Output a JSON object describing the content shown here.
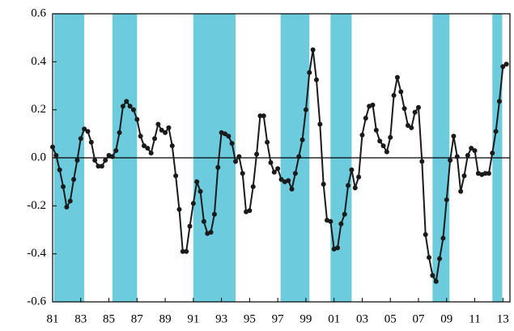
{
  "chart_data": {
    "type": "line",
    "x": [
      1981,
      1981.25,
      1981.5,
      1981.75,
      1982,
      1982.25,
      1982.5,
      1982.75,
      1983,
      1983.25,
      1983.5,
      1983.75,
      1984,
      1984.25,
      1984.5,
      1984.75,
      1985,
      1985.25,
      1985.5,
      1985.75,
      1986,
      1986.25,
      1986.5,
      1986.75,
      1987,
      1987.25,
      1987.5,
      1987.75,
      1988,
      1988.25,
      1988.5,
      1988.75,
      1989,
      1989.25,
      1989.5,
      1989.75,
      1990,
      1990.25,
      1990.5,
      1990.75,
      1991,
      1991.25,
      1991.5,
      1991.75,
      1992,
      1992.25,
      1992.5,
      1992.75,
      1993,
      1993.25,
      1993.5,
      1993.75,
      1994,
      1994.25,
      1994.5,
      1994.75,
      1995,
      1995.25,
      1995.5,
      1995.75,
      1996,
      1996.25,
      1996.5,
      1996.75,
      1997,
      1997.25,
      1997.5,
      1997.75,
      1998,
      1998.25,
      1998.5,
      1998.75,
      1999,
      1999.25,
      1999.5,
      1999.75,
      2000,
      2000.25,
      2000.5,
      2000.75,
      2001,
      2001.25,
      2001.5,
      2001.75,
      2002,
      2002.25,
      2002.5,
      2002.75,
      2003,
      2003.25,
      2003.5,
      2003.75,
      2004,
      2004.25,
      2004.5,
      2004.75,
      2005,
      2005.25,
      2005.5,
      2005.75,
      2006,
      2006.25,
      2006.5,
      2006.75,
      2007,
      2007.25,
      2007.5,
      2007.75,
      2008,
      2008.25,
      2008.5,
      2008.75,
      2009,
      2009.25,
      2009.5,
      2009.75,
      2010,
      2010.25,
      2010.5,
      2010.75,
      2011,
      2011.25,
      2011.5,
      2011.75,
      2012,
      2012.25,
      2012.5,
      2012.75,
      2013,
      2013.25
    ],
    "series": [
      {
        "color": "#1a1a1a",
        "values": [
          0.045,
          0.01,
          -0.05,
          -0.12,
          -0.205,
          -0.18,
          -0.09,
          -0.01,
          0.08,
          0.12,
          0.11,
          0.065,
          -0.01,
          -0.035,
          -0.035,
          -0.01,
          0.01,
          0.005,
          0.03,
          0.105,
          0.215,
          0.235,
          0.215,
          0.2,
          0.16,
          0.09,
          0.05,
          0.04,
          0.02,
          0.08,
          0.14,
          0.115,
          0.105,
          0.125,
          0.05,
          -0.075,
          -0.215,
          -0.39,
          -0.39,
          -0.285,
          -0.19,
          -0.1,
          -0.14,
          -0.265,
          -0.315,
          -0.31,
          -0.235,
          -0.04,
          0.105,
          0.1,
          0.09,
          0.06,
          -0.015,
          0.005,
          -0.065,
          -0.225,
          -0.22,
          -0.12,
          0.015,
          0.175,
          0.175,
          0.065,
          -0.02,
          -0.06,
          -0.045,
          -0.09,
          -0.1,
          -0.095,
          -0.13,
          -0.065,
          0.005,
          0.075,
          0.2,
          0.355,
          0.45,
          0.325,
          0.14,
          -0.11,
          -0.26,
          -0.265,
          -0.38,
          -0.375,
          -0.275,
          -0.235,
          -0.115,
          -0.05,
          -0.125,
          -0.08,
          0.095,
          0.165,
          0.215,
          0.22,
          0.115,
          0.07,
          0.05,
          0.025,
          0.085,
          0.26,
          0.335,
          0.275,
          0.205,
          0.135,
          0.125,
          0.19,
          0.21,
          -0.015,
          -0.32,
          -0.415,
          -0.49,
          -0.515,
          -0.42,
          -0.335,
          -0.175,
          -0.01,
          0.09,
          0.005,
          -0.14,
          -0.075,
          0.01,
          0.04,
          0.03,
          -0.065,
          -0.07,
          -0.065,
          -0.065,
          0.02,
          0.11,
          0.235,
          0.38,
          0.39
        ]
      }
    ],
    "shaded_periods": [
      [
        1981.1,
        1983.25
      ],
      [
        1985.25,
        1987
      ],
      [
        1991,
        1994
      ],
      [
        1997.2,
        1999.25
      ],
      [
        2000.75,
        2002.25
      ],
      [
        2008,
        2009.2
      ],
      [
        2012.25,
        2012.95
      ]
    ],
    "shade_color": "#6ccbdc",
    "xlim": [
      1981,
      2013.5
    ],
    "xticks": [
      {
        "value": 1981,
        "label": "81"
      },
      {
        "value": 1983,
        "label": "83"
      },
      {
        "value": 1985,
        "label": "85"
      },
      {
        "value": 1987,
        "label": "87"
      },
      {
        "value": 1989,
        "label": "89"
      },
      {
        "value": 1991,
        "label": "91"
      },
      {
        "value": 1993,
        "label": "93"
      },
      {
        "value": 1995,
        "label": "95"
      },
      {
        "value": 1997,
        "label": "97"
      },
      {
        "value": 1999,
        "label": "99"
      },
      {
        "value": 2001,
        "label": "01"
      },
      {
        "value": 2003,
        "label": "03"
      },
      {
        "value": 2005,
        "label": "05"
      },
      {
        "value": 2007,
        "label": "07"
      },
      {
        "value": 2009,
        "label": "09"
      },
      {
        "value": 2011,
        "label": "11"
      },
      {
        "value": 2013,
        "label": "13"
      }
    ],
    "ylim": [
      -0.6,
      0.6
    ],
    "yticks": [
      0.6,
      0.4,
      0.2,
      {
        "value": 0,
        "label": "0.0"
      },
      -0.2,
      -0.4,
      -0.6
    ]
  }
}
